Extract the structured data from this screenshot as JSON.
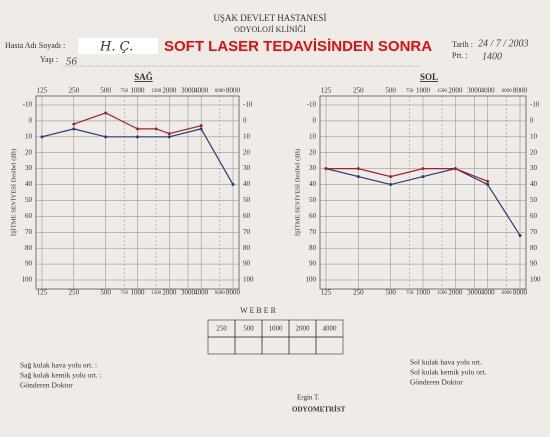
{
  "header": {
    "hospital": "UŞAK DEVLET HASTANESİ",
    "clinic": "ODYOLOJİ KLİNİĞİ"
  },
  "patient": {
    "name_label": "Hasta Adı Soyadı :",
    "name": "H. Ç.",
    "age_label": "Yaşı :",
    "age": "56",
    "date_label": "Tarih :",
    "date": "24 / 7 / 2003",
    "prt_label": "Prt. :",
    "prt": "1400"
  },
  "annotation": "SOFT LASER TEDAVİSİNDEN SONRA",
  "chart_data": [
    {
      "type": "line",
      "title": "SAĞ",
      "y_label": "İŞİTME SEVİYESİ Desibel (dB)",
      "xlim": [
        125,
        8000
      ],
      "xticks": [
        125,
        250,
        500,
        750,
        1000,
        1500,
        2000,
        3000,
        4000,
        6000,
        8000
      ],
      "log_x": true,
      "ylim": [
        -10,
        100
      ],
      "yticks": [
        -10,
        0,
        10,
        20,
        30,
        40,
        50,
        60,
        70,
        80,
        90,
        100
      ],
      "y_inverted": true,
      "grid": true,
      "series": [
        {
          "color": "#2b3a78",
          "x": [
            125,
            250,
            500,
            1000,
            2000,
            4000,
            8000
          ],
          "values": [
            10,
            5,
            10,
            10,
            10,
            5,
            40
          ]
        },
        {
          "color": "#a3202e",
          "x": [
            250,
            500,
            1000,
            1500,
            2000,
            4000
          ],
          "values": [
            2,
            -5,
            5,
            5,
            8,
            3
          ]
        }
      ]
    },
    {
      "type": "line",
      "title": "SOL",
      "y_label": "İŞİTME SEVİYESİ Desibel (dB)",
      "xlim": [
        125,
        8000
      ],
      "xticks": [
        125,
        250,
        500,
        750,
        1000,
        1500,
        2000,
        3000,
        4000,
        6000,
        8000
      ],
      "log_x": true,
      "ylim": [
        -10,
        100
      ],
      "yticks": [
        -10,
        0,
        10,
        20,
        30,
        40,
        50,
        60,
        70,
        80,
        90,
        100
      ],
      "y_inverted": true,
      "grid": true,
      "series": [
        {
          "color": "#2b3a78",
          "x": [
            125,
            250,
            500,
            1000,
            2000,
            4000,
            8000
          ],
          "values": [
            30,
            35,
            40,
            35,
            30,
            40,
            72
          ]
        },
        {
          "color": "#a3202e",
          "x": [
            125,
            250,
            500,
            1000,
            2000,
            4000
          ],
          "values": [
            30,
            30,
            35,
            30,
            30,
            38
          ]
        }
      ]
    }
  ],
  "weber": {
    "title": "W E B E R",
    "columns": [
      "250",
      "500",
      "1000",
      "2000",
      "4000"
    ]
  },
  "footer": {
    "left": [
      "Sağ kulak hava yolu ort. :",
      "Sağ kulak kemik yolu ort. :",
      "Gönderen Doktor"
    ],
    "right": [
      "Sol kulak hava yolu ort.",
      "Sol kulak kemik yolu ort.",
      "Gönderen Doktor"
    ],
    "stamp": [
      "Ergin T.",
      "ODYOMETRİST"
    ]
  }
}
